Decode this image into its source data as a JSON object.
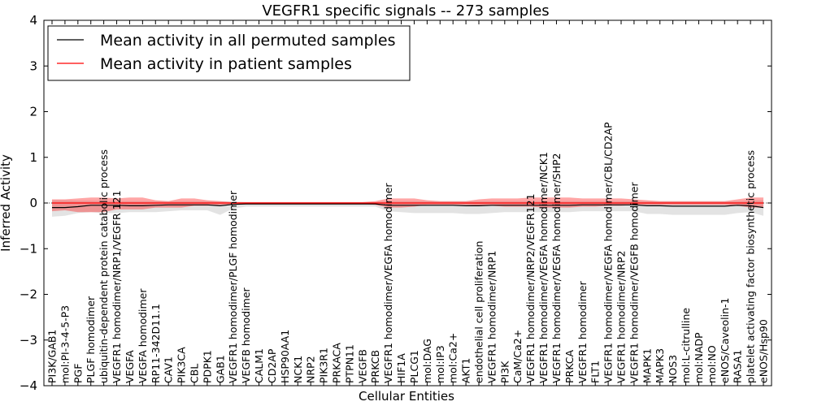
{
  "chart_data": {
    "type": "line",
    "title": "VEGFR1 specific signals -- 273 samples",
    "xlabel": "Cellular Entities",
    "ylabel": "Inferred Activity",
    "ylim": [
      -4,
      4
    ],
    "yticks": [
      -4,
      -3,
      -2,
      -1,
      0,
      1,
      2,
      3,
      4
    ],
    "ytick_labels": [
      "−4",
      "−3",
      "−2",
      "−1",
      "0",
      "1",
      "2",
      "3",
      "4"
    ],
    "legend_position": "top-left",
    "categories": [
      "PI3K/GAB1",
      "mol:PI-3-4-5-P3",
      "PGF",
      "PLGF homodimer",
      "ubiquitin-dependent protein catabolic process",
      "VEGFR1 homodimer/NRP1/VEGFR 121",
      "VEGFA",
      "VEGFA homodimer",
      "RP11-342D11.1",
      "CAV1",
      "PIK3CA",
      "CBL",
      "PDPK1",
      "GAB1",
      "VEGFR1 homodimer/PLGF homodimer",
      "VEGFB homodimer",
      "CALM1",
      "CD2AP",
      "HSP90AA1",
      "NCK1",
      "NRP2",
      "PIK3R1",
      "PRKACA",
      "PTPN11",
      "VEGFB",
      "PRKCB",
      "VEGFR1 homodimer/VEGFA homodimer",
      "HIF1A",
      "PLCG1",
      "mol:DAG",
      "mol:IP3",
      "mol:Ca2+",
      "AKT1",
      "endothelial cell proliferation",
      "VEGFR1 homodimer/NRP1",
      "PI3K",
      "CaM/Ca2+",
      "VEGFR1 homodimer/NRP2/VEGFR121",
      "VEGFR1 homodimer/VEGFA homodimer/NCK1",
      "VEGFR1 homodimer/VEGFA homodimer/SHP2",
      "PRKCA",
      "VEGFR1 homodimer",
      "FLT1",
      "VEGFR1 homodimer/VEGFA homodimer/CBL/CD2AP",
      "VEGFR1 homodimer/NRP2",
      "VEGFR1 homodimer/VEGFB homodimer",
      "MAPK1",
      "MAPK3",
      "NOS3",
      "mol:L-citrulline",
      "mol:NADP",
      "mol:NO",
      "eNOS/Caveolin-1",
      "RASA1",
      "platelet activating factor biosynthetic process",
      "eNOS/Hsp90"
    ],
    "series": [
      {
        "name": "Mean activity in all permuted samples",
        "color": "#000000",
        "values": [
          -0.1,
          -0.1,
          -0.08,
          -0.05,
          -0.05,
          -0.05,
          -0.06,
          -0.06,
          -0.05,
          -0.04,
          -0.04,
          -0.04,
          -0.04,
          -0.06,
          -0.03,
          -0.02,
          -0.02,
          -0.02,
          -0.02,
          -0.02,
          -0.02,
          -0.02,
          -0.02,
          -0.02,
          -0.02,
          -0.02,
          -0.05,
          -0.05,
          -0.05,
          -0.05,
          -0.05,
          -0.05,
          -0.06,
          -0.06,
          -0.05,
          -0.05,
          -0.05,
          -0.05,
          -0.05,
          -0.05,
          -0.05,
          -0.04,
          -0.04,
          -0.04,
          -0.04,
          -0.04,
          -0.06,
          -0.06,
          -0.07,
          -0.07,
          -0.07,
          -0.07,
          -0.07,
          -0.05,
          -0.06,
          -0.1
        ],
        "lower": [
          -0.3,
          -0.28,
          -0.22,
          -0.2,
          -0.22,
          -0.22,
          -0.2,
          -0.2,
          -0.2,
          -0.18,
          -0.16,
          -0.16,
          -0.16,
          -0.26,
          -0.12,
          -0.08,
          -0.08,
          -0.08,
          -0.08,
          -0.08,
          -0.08,
          -0.08,
          -0.08,
          -0.08,
          -0.08,
          -0.08,
          -0.18,
          -0.2,
          -0.22,
          -0.22,
          -0.22,
          -0.22,
          -0.24,
          -0.24,
          -0.22,
          -0.2,
          -0.2,
          -0.2,
          -0.2,
          -0.2,
          -0.2,
          -0.18,
          -0.18,
          -0.18,
          -0.18,
          -0.18,
          -0.24,
          -0.24,
          -0.26,
          -0.26,
          -0.26,
          -0.26,
          -0.26,
          -0.22,
          -0.2,
          -0.28
        ],
        "upper": [
          0.06,
          0.06,
          0.05,
          0.05,
          0.04,
          0.04,
          0.04,
          0.04,
          0.04,
          0.04,
          0.04,
          0.04,
          0.04,
          0.04,
          0.03,
          0.02,
          0.02,
          0.02,
          0.02,
          0.02,
          0.02,
          0.02,
          0.02,
          0.02,
          0.02,
          0.02,
          0.04,
          0.04,
          0.04,
          0.04,
          0.04,
          0.04,
          0.04,
          0.04,
          0.04,
          0.04,
          0.04,
          0.04,
          0.04,
          0.04,
          0.04,
          0.04,
          0.04,
          0.04,
          0.04,
          0.04,
          0.04,
          0.04,
          0.04,
          0.04,
          0.04,
          0.04,
          0.04,
          0.04,
          0.05,
          0.06
        ]
      },
      {
        "name": "Mean activity in patient samples",
        "color": "#ff0000",
        "values": [
          0,
          0,
          0,
          0,
          0,
          0,
          0,
          0,
          0,
          0,
          0,
          0,
          0,
          0,
          0,
          0,
          0,
          0,
          0,
          0,
          0,
          0,
          0,
          0,
          0,
          0,
          0,
          0,
          0,
          0,
          0,
          0,
          0,
          0,
          0,
          0,
          0,
          0,
          0,
          0,
          0,
          0,
          0,
          0,
          0,
          0,
          0,
          0,
          0,
          0,
          0,
          0,
          0,
          0,
          0,
          0
        ],
        "lower": [
          -0.18,
          -0.16,
          -0.2,
          -0.2,
          -0.2,
          -0.14,
          -0.14,
          -0.14,
          -0.1,
          -0.1,
          -0.1,
          -0.06,
          -0.06,
          -0.04,
          -0.03,
          -0.02,
          -0.02,
          -0.02,
          -0.02,
          -0.02,
          -0.02,
          -0.02,
          -0.02,
          -0.02,
          -0.02,
          -0.04,
          -0.1,
          -0.1,
          -0.08,
          -0.04,
          -0.04,
          -0.04,
          -0.04,
          -0.06,
          -0.06,
          -0.08,
          -0.08,
          -0.08,
          -0.1,
          -0.1,
          -0.1,
          -0.08,
          -0.08,
          -0.06,
          -0.06,
          -0.04,
          -0.04,
          -0.04,
          -0.04,
          -0.04,
          -0.04,
          -0.04,
          -0.04,
          -0.06,
          -0.1,
          -0.1
        ],
        "upper": [
          0.08,
          0.08,
          0.1,
          0.12,
          0.12,
          0.1,
          0.12,
          0.12,
          0.06,
          0.04,
          0.1,
          0.1,
          0.06,
          0.04,
          0.02,
          0.02,
          0.02,
          0.02,
          0.02,
          0.02,
          0.02,
          0.02,
          0.02,
          0.02,
          0.02,
          0.04,
          0.1,
          0.1,
          0.1,
          0.06,
          0.04,
          0.04,
          0.04,
          0.08,
          0.1,
          0.1,
          0.1,
          0.12,
          0.12,
          0.12,
          0.12,
          0.1,
          0.1,
          0.1,
          0.1,
          0.08,
          0.06,
          0.04,
          0.04,
          0.04,
          0.04,
          0.04,
          0.04,
          0.08,
          0.12,
          0.12
        ]
      }
    ]
  }
}
